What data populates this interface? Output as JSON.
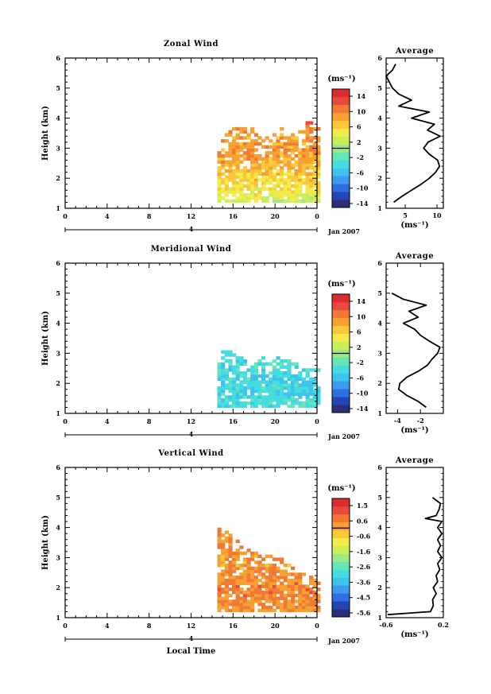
{
  "figure": {
    "date_label": "Jan 2007",
    "xlabel": "Local Time",
    "unit_label": "(ms⁻¹)",
    "day_marker": "4"
  },
  "colormap": [
    "#2a2f7a",
    "#2346b6",
    "#2f6ee2",
    "#3a9bf0",
    "#3cc3ee",
    "#45dddf",
    "#66e6b5",
    "#9aeb86",
    "#c9ee5a",
    "#f2ec4a",
    "#f9c93a",
    "#f7a133",
    "#f07a35",
    "#e8493a",
    "#dd2c2f"
  ],
  "chart_data": [
    {
      "type": "heatmap",
      "title": "Zonal Wind",
      "xlabel": "",
      "ylabel": "Height (km)",
      "xlim": [
        0,
        24
      ],
      "ylim": [
        1,
        6
      ],
      "xticks": [
        "0",
        "4",
        "8",
        "12",
        "16",
        "20",
        "0"
      ],
      "yticks": [
        "1",
        "2",
        "3",
        "4",
        "5",
        "6"
      ],
      "colorbar": {
        "ticks": [
          "14",
          "10",
          "6",
          "2",
          "-2",
          "-6",
          "-10",
          "-14"
        ],
        "range": [
          -15,
          15
        ]
      },
      "field": {
        "time_range": [
          14.5,
          24
        ],
        "height_range": [
          1.2,
          3.9
        ],
        "top_heights": [
          [
            14.5,
            3.0
          ],
          [
            15.5,
            3.6
          ],
          [
            17,
            3.7
          ],
          [
            18.5,
            3.5
          ],
          [
            19.5,
            3.3
          ],
          [
            20.5,
            3.7
          ],
          [
            22,
            3.4
          ],
          [
            23,
            3.9
          ],
          [
            24,
            3.6
          ]
        ],
        "profile_heights": [
          1.2,
          1.5,
          1.8,
          2.1,
          2.4,
          2.7,
          3.0,
          3.3,
          3.6,
          3.9
        ],
        "profile_values": [
          2,
          4,
          5,
          6,
          7,
          8,
          8.5,
          8,
          9,
          12
        ]
      },
      "average": {
        "title": "Average",
        "xlabel": "(ms⁻¹)",
        "xlim": [
          2,
          11
        ],
        "xticks": [
          "5",
          "10"
        ],
        "xtick_values": [
          5,
          10
        ],
        "yticks": [
          "1",
          "2",
          "3",
          "4",
          "5",
          "6"
        ],
        "height": [
          1.2,
          1.4,
          1.6,
          1.8,
          2.0,
          2.2,
          2.4,
          2.6,
          2.8,
          3.0,
          3.2,
          3.4,
          3.6,
          3.8,
          4.0,
          4.2,
          4.4,
          4.6,
          4.8,
          5.0,
          5.2,
          5.4,
          5.6,
          5.8
        ],
        "value": [
          3.2,
          4.5,
          6.0,
          7.5,
          8.8,
          9.8,
          10.4,
          10.1,
          8.8,
          7.9,
          8.6,
          10.5,
          8.5,
          9.6,
          6.0,
          8.8,
          4.0,
          6.0,
          4.0,
          3.0,
          2.5,
          2.0,
          3.0,
          3.5
        ]
      }
    },
    {
      "type": "heatmap",
      "title": "Meridional Wind",
      "xlabel": "",
      "ylabel": "Height (km)",
      "xlim": [
        0,
        24
      ],
      "ylim": [
        1,
        6
      ],
      "xticks": [
        "0",
        "4",
        "8",
        "12",
        "16",
        "20",
        "0"
      ],
      "yticks": [
        "1",
        "2",
        "3",
        "4",
        "5",
        "6"
      ],
      "colorbar": {
        "ticks": [
          "14",
          "10",
          "6",
          "2",
          "-2",
          "-6",
          "-10",
          "-14"
        ],
        "range": [
          -15,
          15
        ]
      },
      "field": {
        "time_range": [
          14.5,
          24
        ],
        "height_range": [
          1.2,
          3.2
        ],
        "top_heights": [
          [
            14.5,
            3.1
          ],
          [
            16,
            3.0
          ],
          [
            17.5,
            2.6
          ],
          [
            19,
            2.9
          ],
          [
            20.5,
            2.8
          ],
          [
            22,
            2.6
          ],
          [
            23,
            2.4
          ],
          [
            24,
            2.5
          ]
        ],
        "profile_heights": [
          1.2,
          1.6,
          2.0,
          2.4,
          2.8,
          3.2
        ],
        "profile_values": [
          -3.5,
          -4.5,
          -4.8,
          -4.0,
          -3.5,
          -3.0
        ]
      },
      "average": {
        "title": "Average",
        "xlabel": "(ms⁻¹)",
        "xlim": [
          -5,
          0
        ],
        "xticks": [
          "-4",
          "-2"
        ],
        "xtick_values": [
          -4,
          -2
        ],
        "yticks": [
          "1",
          "2",
          "3",
          "4",
          "5",
          "6"
        ],
        "height": [
          1.2,
          1.4,
          1.6,
          1.8,
          2.0,
          2.2,
          2.4,
          2.6,
          2.8,
          3.0,
          3.2,
          3.4,
          3.6,
          3.8,
          4.0,
          4.2,
          4.4,
          4.6,
          4.8,
          5.0
        ],
        "value": [
          -1.5,
          -2.2,
          -3.2,
          -3.9,
          -3.8,
          -3.2,
          -2.2,
          -1.4,
          -1.0,
          -0.5,
          -0.3,
          -1.2,
          -2.0,
          -2.5,
          -3.5,
          -2.2,
          -3.0,
          -1.5,
          -3.5,
          -4.5
        ]
      }
    },
    {
      "type": "heatmap",
      "title": "Vertical Wind",
      "xlabel": "Local Time",
      "ylabel": "Height (km)",
      "xlim": [
        0,
        24
      ],
      "ylim": [
        1,
        6
      ],
      "xticks": [
        "0",
        "4",
        "8",
        "12",
        "16",
        "20",
        "0"
      ],
      "yticks": [
        "1",
        "2",
        "3",
        "4",
        "5",
        "6"
      ],
      "colorbar": {
        "ticks": [
          "1.5",
          "0.6",
          "-0.6",
          "-1.6",
          "-2.6",
          "-3.6",
          "-4.5",
          "-5.6"
        ],
        "range": [
          -6,
          2
        ]
      },
      "field": {
        "time_range": [
          14.5,
          24
        ],
        "height_range": [
          1.2,
          4.0
        ],
        "top_heights": [
          [
            14.5,
            4.0
          ],
          [
            16,
            3.6
          ],
          [
            17.5,
            3.2
          ],
          [
            19,
            3.1
          ],
          [
            20.5,
            2.9
          ],
          [
            22,
            2.6
          ],
          [
            23,
            2.4
          ],
          [
            24,
            2.2
          ]
        ],
        "profile_heights": [
          1.2,
          1.8,
          2.4,
          3.0,
          3.6,
          4.0
        ],
        "profile_values": [
          0.3,
          0.6,
          0.4,
          0.2,
          0.4,
          0.3
        ]
      },
      "average": {
        "title": "Average",
        "xlabel": "(ms⁻¹)",
        "xlim": [
          -0.6,
          0.2
        ],
        "xticks": [
          "-0.6",
          "0.2"
        ],
        "xtick_values": [
          -0.6,
          0.2
        ],
        "yticks": [
          "1",
          "2",
          "3",
          "4",
          "5",
          "6"
        ],
        "height": [
          1.1,
          1.2,
          1.4,
          1.6,
          1.8,
          2.0,
          2.2,
          2.4,
          2.6,
          2.8,
          3.0,
          3.2,
          3.4,
          3.6,
          3.8,
          4.0,
          4.2,
          4.3,
          4.4,
          4.6,
          4.8,
          5.0
        ],
        "value": [
          -0.58,
          0.02,
          0.06,
          0.05,
          0.1,
          0.06,
          0.12,
          0.1,
          0.15,
          0.12,
          0.18,
          0.12,
          0.16,
          0.12,
          0.18,
          0.12,
          0.18,
          -0.05,
          0.1,
          0.14,
          0.16,
          0.05
        ]
      }
    }
  ]
}
